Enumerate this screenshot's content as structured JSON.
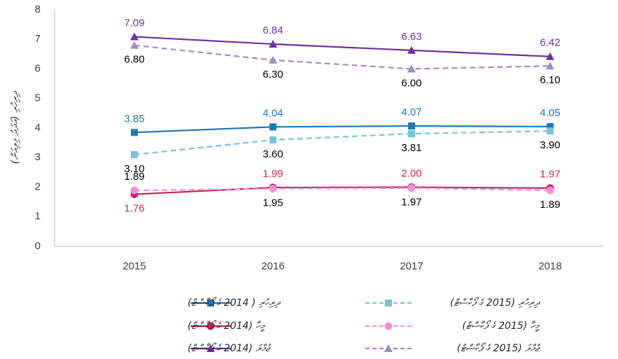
{
  "chart_data": {
    "type": "line",
    "y_label": "(އަދަދު މިލިއަން) ދިރިހުރި",
    "categories": [
      "2015",
      "2016",
      "2017",
      "2018"
    ],
    "ylim": [
      0,
      8
    ],
    "yticks": [
      0,
      1,
      2,
      3,
      4,
      5,
      6,
      7,
      8
    ],
    "series": [
      {
        "name": "ދިރިހުރި ( 2014 ގެ ފޯކާސްޓް)",
        "color": "#1f77b4",
        "dash": false,
        "marker": "square",
        "value_label_color": "#1f77b4",
        "values": [
          3.85,
          4.04,
          4.07,
          4.05
        ],
        "value_labels": [
          "3.85",
          "4.04",
          "4.07",
          "4.05"
        ]
      },
      {
        "name": "ދިރިހުރި (2015 ގެ ފޯކާސްޓް)",
        "color": "#79c2d8",
        "dash": true,
        "marker": "square",
        "value_label_color": "#000000",
        "values": [
          3.1,
          3.6,
          3.81,
          3.9
        ],
        "value_labels": [
          "3.10",
          "3.60",
          "3.81",
          "3.90"
        ]
      },
      {
        "name": "މީހާ (2014 ގެ ފޯކާސްޓް)",
        "color": "#c8265a",
        "dash": false,
        "marker": "circle",
        "value_label_color": "#c8265a",
        "values": [
          1.76,
          1.99,
          2.0,
          1.97
        ],
        "value_labels": [
          "1.76",
          "1.99",
          "2.00",
          "1.97"
        ]
      },
      {
        "name": "މީހާ (2015 ގެ ފޯކާސްޓް)",
        "color": "#f58fd8",
        "dash": true,
        "marker": "circle",
        "value_label_color": "#000000",
        "values": [
          1.89,
          1.95,
          1.97,
          1.89
        ],
        "value_labels": [
          "1.89",
          "1.95",
          "1.97",
          "1.89"
        ]
      },
      {
        "name": "ޖުމްލަ (2014 ގެ ފޯކާސްޓް)",
        "color": "#7030a0",
        "dash": false,
        "marker": "triangle",
        "value_label_color": "#7030a0",
        "values": [
          7.09,
          6.84,
          6.63,
          6.42
        ],
        "value_labels": [
          "7.09",
          "6.84",
          "6.63",
          "6.42"
        ]
      },
      {
        "name": "ޖުމްލަ (2015 ގެ ފޯކާސްޓް)",
        "color": "#a08cc0",
        "dash": true,
        "marker": "triangle",
        "value_label_color": "#000000",
        "values": [
          6.8,
          6.3,
          6.0,
          6.1
        ],
        "value_labels": [
          "6.80",
          "6.30",
          "6.00",
          "6.10"
        ]
      }
    ]
  }
}
